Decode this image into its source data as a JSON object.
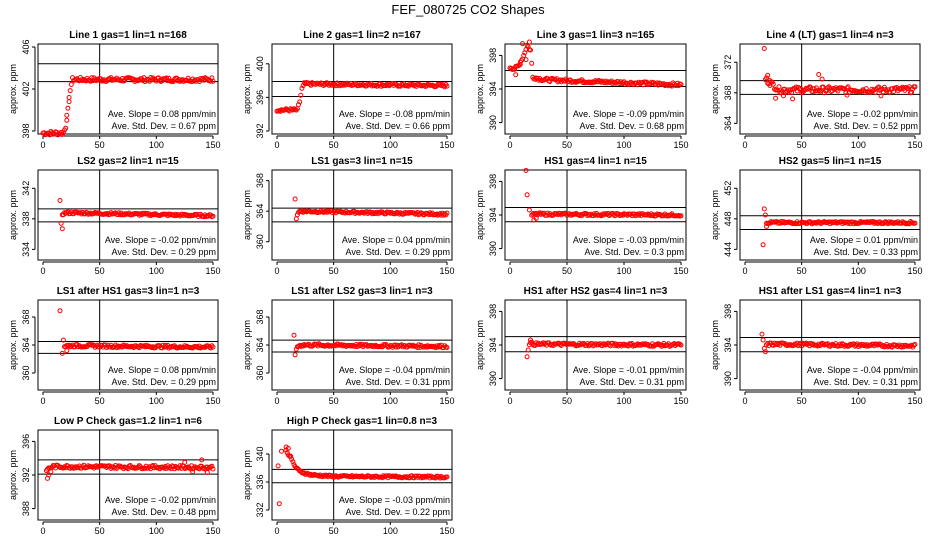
{
  "page": {
    "title": "FEF_080725  CO2 Shapes"
  },
  "colors": {
    "points": "#ff0000",
    "axis": "#000000",
    "background": "#ffffff"
  },
  "chart_data": [
    {
      "type": "scatter",
      "title": "Line 1 gas=1 lin=1 n=168",
      "ylabel": "approx. ppm",
      "xlim": [
        0,
        150
      ],
      "ylim": [
        398,
        406
      ],
      "xticks": [
        "0",
        "50",
        "100",
        "150"
      ],
      "yticks": [
        "398",
        "402",
        "406"
      ],
      "ytick_values": [
        398,
        402,
        406
      ],
      "hlines": [
        402.7,
        404.4
      ],
      "vline": 50,
      "stats": [
        "Ave. Slope =  0.08  ppm/min",
        "Ave. Std. Dev. =  0.67  ppm"
      ],
      "series": [
        {
          "shape": [
            [
              0,
              397.8
            ],
            [
              18,
              397.8
            ],
            [
              20,
              398.4
            ],
            [
              22,
              400
            ],
            [
              24,
              402
            ],
            [
              26,
              402.9
            ],
            [
              150,
              402.9
            ]
          ],
          "jitter": 0.2,
          "outliers": [
            [
              23,
              400.8
            ],
            [
              21,
              399.5
            ]
          ]
        }
      ]
    },
    {
      "type": "scatter",
      "title": "Line 2 gas=1 lin=2 n=167",
      "ylabel": "approx. ppm",
      "xlim": [
        0,
        150
      ],
      "ylim": [
        392,
        402
      ],
      "xticks": [
        "0",
        "50",
        "100",
        "150"
      ],
      "yticks": [
        "392",
        "396",
        "400"
      ],
      "ytick_values": [
        392,
        396,
        400
      ],
      "hlines": [
        396.1,
        397.9
      ],
      "vline": 50,
      "stats": [
        "Ave. Slope =  -0.08  ppm/min",
        "Ave. Std. Dev. =  0.66  ppm"
      ],
      "series": [
        {
          "shape": [
            [
              0,
              394.5
            ],
            [
              18,
              394.5
            ],
            [
              20,
              395.5
            ],
            [
              22,
              397
            ],
            [
              24,
              397.6
            ],
            [
              150,
              397.4
            ]
          ],
          "jitter": 0.18,
          "outliers": []
        }
      ]
    },
    {
      "type": "scatter",
      "title": "Line 3 gas=1 lin=3 n=165",
      "ylabel": "approx. ppm",
      "xlim": [
        0,
        150
      ],
      "ylim": [
        389,
        399
      ],
      "xticks": [
        "0",
        "50",
        "100",
        "150"
      ],
      "yticks": [
        "390",
        "394",
        "398"
      ],
      "ytick_values": [
        390,
        394,
        398
      ],
      "hlines": [
        394.3,
        396.2
      ],
      "vline": 50,
      "stats": [
        "Ave. Slope =  -0.09  ppm/min",
        "Ave. Std. Dev. =  0.68  ppm"
      ],
      "series": [
        {
          "shape": [
            [
              0,
              396.6
            ],
            [
              4,
              396.4
            ],
            [
              8,
              396.8
            ],
            [
              12,
              398
            ],
            [
              15,
              399.2
            ],
            [
              18,
              398.6
            ],
            [
              20,
              395.4
            ],
            [
              30,
              395.1
            ],
            [
              150,
              394.5
            ]
          ],
          "jitter": 0.2,
          "outliers": [
            [
              5,
              395.7
            ],
            [
              9,
              397.2
            ],
            [
              11,
              399.4
            ],
            [
              14,
              397.5
            ],
            [
              17,
              399.6
            ]
          ]
        }
      ]
    },
    {
      "type": "scatter",
      "title": "Line 4 (LT) gas=1 lin=4 n=3",
      "ylabel": "approx. ppm",
      "xlim": [
        0,
        150
      ],
      "ylim": [
        363,
        374
      ],
      "xticks": [
        "0",
        "50",
        "100",
        "150"
      ],
      "yticks": [
        "364",
        "368",
        "372"
      ],
      "ytick_values": [
        364,
        368,
        372
      ],
      "hlines": [
        367.8,
        369.6
      ],
      "vline": 50,
      "stats": [
        "Ave. Slope =  -0.02  ppm/min",
        "Ave. Std. Dev. =  0.52  ppm"
      ],
      "series": [
        {
          "shape": [
            [
              18,
              369.8
            ],
            [
              25,
              369
            ],
            [
              30,
              368.4
            ],
            [
              150,
              368.4
            ]
          ],
          "jitter": 0.4,
          "outliers": [
            [
              17,
              373.8
            ],
            [
              20,
              370.3
            ],
            [
              22,
              369.6
            ],
            [
              27,
              367.3
            ],
            [
              34,
              367.6
            ],
            [
              42,
              367.2
            ],
            [
              65,
              370.4
            ],
            [
              68,
              369.8
            ],
            [
              90,
              367.7
            ],
            [
              120,
              367.6
            ]
          ]
        }
      ]
    },
    {
      "type": "scatter",
      "title": "LS2 gas=2 lin=1 n=15",
      "ylabel": "approx. ppm",
      "xlim": [
        0,
        150
      ],
      "ylim": [
        333,
        344
      ],
      "xticks": [
        "0",
        "50",
        "100",
        "150"
      ],
      "yticks": [
        "334",
        "338",
        "342"
      ],
      "ytick_values": [
        334,
        338,
        342
      ],
      "hlines": [
        337.6,
        339.3
      ],
      "vline": 50,
      "stats": [
        "Ave. Slope =  -0.02  ppm/min",
        "Ave. Std. Dev. =  0.29  ppm"
      ],
      "series": [
        {
          "shape": [
            [
              17,
              338.6
            ],
            [
              20,
              338.8
            ],
            [
              150,
              338.4
            ]
          ],
          "jitter": 0.15,
          "outliers": [
            [
              15,
              340.4
            ],
            [
              16,
              337.4
            ],
            [
              17,
              336.7
            ]
          ]
        }
      ]
    },
    {
      "type": "scatter",
      "title": "LS1 gas=3 lin=1 n=15",
      "ylabel": "approx. ppm",
      "xlim": [
        0,
        150
      ],
      "ylim": [
        358,
        369
      ],
      "xticks": [
        "0",
        "50",
        "100",
        "150"
      ],
      "yticks": [
        "360",
        "364",
        "368"
      ],
      "ytick_values": [
        360,
        364,
        368
      ],
      "hlines": [
        362.6,
        364.4
      ],
      "vline": 50,
      "stats": [
        "Ave. Slope =  0.04  ppm/min",
        "Ave. Std. Dev. =  0.29  ppm"
      ],
      "series": [
        {
          "shape": [
            [
              18,
              363.6
            ],
            [
              20,
              364
            ],
            [
              150,
              363.6
            ]
          ],
          "jitter": 0.15,
          "outliers": [
            [
              16,
              365.6
            ],
            [
              17,
              363
            ]
          ]
        }
      ]
    },
    {
      "type": "scatter",
      "title": "HS1 gas=4 lin=1 n=15",
      "ylabel": "approx. ppm",
      "xlim": [
        0,
        150
      ],
      "ylim": [
        389,
        399
      ],
      "xticks": [
        "0",
        "50",
        "100",
        "150"
      ],
      "yticks": [
        "390",
        "394",
        "398"
      ],
      "ytick_values": [
        390,
        394,
        398
      ],
      "hlines": [
        393.2,
        394.9
      ],
      "vline": 50,
      "stats": [
        "Ave. Slope =  -0.03  ppm/min",
        "Ave. Std. Dev. =  0.3  ppm"
      ],
      "series": [
        {
          "shape": [
            [
              19,
              394
            ],
            [
              22,
              394.1
            ],
            [
              150,
              394
            ]
          ],
          "jitter": 0.15,
          "outliers": [
            [
              14,
              399.3
            ],
            [
              15,
              396.4
            ],
            [
              17,
              394.6
            ],
            [
              21,
              393.4
            ],
            [
              23,
              393.6
            ]
          ]
        }
      ]
    },
    {
      "type": "scatter",
      "title": "HS2 gas=5 lin=1 n=15",
      "ylabel": "approx. ppm",
      "xlim": [
        0,
        150
      ],
      "ylim": [
        443,
        454
      ],
      "xticks": [
        "0",
        "50",
        "100",
        "150"
      ],
      "yticks": [
        "444",
        "448",
        "452"
      ],
      "ytick_values": [
        444,
        448,
        452
      ],
      "hlines": [
        446.6,
        448.4
      ],
      "vline": 50,
      "stats": [
        "Ave. Slope =  0.01  ppm/min",
        "Ave. Std. Dev. =  0.33  ppm"
      ],
      "series": [
        {
          "shape": [
            [
              19,
              447.3
            ],
            [
              22,
              447.5
            ],
            [
              150,
              447.5
            ]
          ],
          "jitter": 0.15,
          "outliers": [
            [
              16,
              444.6
            ],
            [
              17,
              449.3
            ],
            [
              18,
              448.5
            ],
            [
              19,
              447
            ]
          ]
        }
      ]
    },
    {
      "type": "scatter",
      "title": "LS1 after HS1 gas=3 lin=1 n=3",
      "ylabel": "approx. ppm",
      "xlim": [
        0,
        150
      ],
      "ylim": [
        358,
        370
      ],
      "xticks": [
        "0",
        "50",
        "100",
        "150"
      ],
      "yticks": [
        "360",
        "364",
        "368"
      ],
      "ytick_values": [
        360,
        364,
        368
      ],
      "hlines": [
        362.8,
        364.5
      ],
      "vline": 50,
      "stats": [
        "Ave. Slope =  0.08  ppm/min",
        "Ave. Std. Dev. =  0.29  ppm"
      ],
      "series": [
        {
          "shape": [
            [
              19,
              363.8
            ],
            [
              22,
              363.9
            ],
            [
              150,
              363.7
            ]
          ],
          "jitter": 0.2,
          "outliers": [
            [
              15,
              368.9
            ],
            [
              17,
              362.8
            ],
            [
              18,
              364.7
            ],
            [
              21,
              363.2
            ]
          ]
        }
      ]
    },
    {
      "type": "scatter",
      "title": "LS1 after LS2 gas=3 lin=1 n=3",
      "ylabel": "approx. ppm",
      "xlim": [
        0,
        150
      ],
      "ylim": [
        358,
        370
      ],
      "xticks": [
        "0",
        "50",
        "100",
        "150"
      ],
      "yticks": [
        "360",
        "364",
        "368"
      ],
      "ytick_values": [
        360,
        364,
        368
      ],
      "hlines": [
        363,
        364.7
      ],
      "vline": 50,
      "stats": [
        "Ave. Slope =  -0.04  ppm/min",
        "Ave. Std. Dev. =  0.31  ppm"
      ],
      "series": [
        {
          "shape": [
            [
              18,
              363.8
            ],
            [
              22,
              364
            ],
            [
              150,
              363.8
            ]
          ],
          "jitter": 0.2,
          "outliers": [
            [
              15,
              365.4
            ],
            [
              16,
              362.6
            ],
            [
              17,
              363.4
            ]
          ]
        }
      ]
    },
    {
      "type": "scatter",
      "title": "HS1 after HS2 gas=4 lin=1 n=3",
      "ylabel": "approx. ppm",
      "xlim": [
        0,
        150
      ],
      "ylim": [
        389,
        399
      ],
      "xticks": [
        "0",
        "50",
        "100",
        "150"
      ],
      "yticks": [
        "390",
        "394",
        "398"
      ],
      "ytick_values": [
        390,
        394,
        398
      ],
      "hlines": [
        393.2,
        395
      ],
      "vline": 50,
      "stats": [
        "Ave. Slope =  -0.01  ppm/min",
        "Ave. Std. Dev. =  0.31  ppm"
      ],
      "series": [
        {
          "shape": [
            [
              17,
              394.2
            ],
            [
              22,
              394.1
            ],
            [
              150,
              394
            ]
          ],
          "jitter": 0.18,
          "outliers": [
            [
              15,
              392.6
            ],
            [
              16,
              393.4
            ],
            [
              18,
              394.6
            ]
          ]
        }
      ]
    },
    {
      "type": "scatter",
      "title": "HS1 after LS1 gas=4 lin=1 n=3",
      "ylabel": "approx. ppm",
      "xlim": [
        0,
        150
      ],
      "ylim": [
        389,
        399
      ],
      "xticks": [
        "0",
        "50",
        "100",
        "150"
      ],
      "yticks": [
        "390",
        "394",
        "398"
      ],
      "ytick_values": [
        390,
        394,
        398
      ],
      "hlines": [
        393.2,
        394.9
      ],
      "vline": 50,
      "stats": [
        "Ave. Slope =  -0.04  ppm/min",
        "Ave. Std. Dev. =  0.31  ppm"
      ],
      "series": [
        {
          "shape": [
            [
              19,
              394
            ],
            [
              22,
              394.1
            ],
            [
              150,
              393.9
            ]
          ],
          "jitter": 0.18,
          "outliers": [
            [
              15,
              395.3
            ],
            [
              16,
              394.6
            ],
            [
              17,
              393.6
            ],
            [
              18,
              393.2
            ]
          ]
        }
      ]
    },
    {
      "type": "scatter",
      "title": "Low P Check gas=1.2 lin=1 n=6",
      "ylabel": "approx. ppm",
      "xlim": [
        0,
        150
      ],
      "ylim": [
        387,
        397
      ],
      "xticks": [
        "0",
        "50",
        "100",
        "150"
      ],
      "yticks": [
        "388",
        "392",
        "396"
      ],
      "ytick_values": [
        388,
        392,
        396
      ],
      "hlines": [
        392.1,
        393.8
      ],
      "vline": 50,
      "stats": [
        "Ave. Slope =  -0.02  ppm/min",
        "Ave. Std. Dev. =  0.48  ppm"
      ],
      "series": [
        {
          "shape": [
            [
              3,
              392.6
            ],
            [
              8,
              393
            ],
            [
              150,
              392.9
            ]
          ],
          "jitter": 0.2,
          "outliers": [
            [
              4,
              391.6
            ],
            [
              5,
              392
            ],
            [
              7,
              392.4
            ],
            [
              125,
              393.5
            ],
            [
              132,
              392.4
            ],
            [
              140,
              393.8
            ],
            [
              145,
              392.3
            ]
          ]
        }
      ]
    },
    {
      "type": "scatter",
      "title": "High P Check gas=1 lin=0.8 n=3",
      "ylabel": "approx. ppm",
      "xlim": [
        0,
        150
      ],
      "ylim": [
        331,
        343
      ],
      "xticks": [
        "0",
        "50",
        "100",
        "150"
      ],
      "yticks": [
        "332",
        "336",
        "340"
      ],
      "ytick_values": [
        332,
        336,
        340
      ],
      "hlines": [
        335.9,
        337.8
      ],
      "vline": 50,
      "stats": [
        "Ave. Slope =  -0.03  ppm/min",
        "Ave. Std. Dev. =  0.22  ppm"
      ],
      "series": [
        {
          "shape": [
            [
              8,
              340.5
            ],
            [
              12,
              339.5
            ],
            [
              16,
              338.2
            ],
            [
              20,
              337.5
            ],
            [
              30,
              337
            ],
            [
              50,
              336.8
            ],
            [
              150,
              336.7
            ]
          ],
          "jitter": 0.15,
          "outliers": [
            [
              1,
              338.3
            ],
            [
              2,
              332.9
            ],
            [
              4,
              340.4
            ],
            [
              8,
              341
            ],
            [
              10,
              340.8
            ],
            [
              12,
              339.7
            ]
          ]
        }
      ]
    }
  ]
}
